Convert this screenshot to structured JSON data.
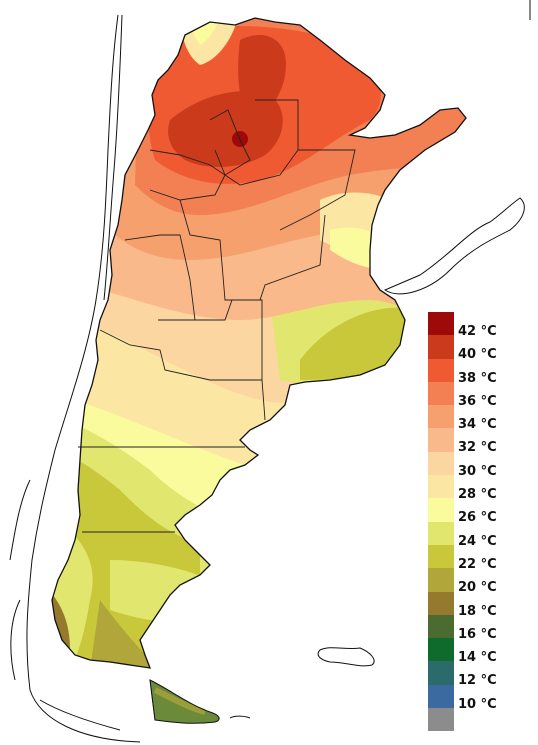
{
  "map": {
    "region": "Argentina",
    "subject": "maximum temperature",
    "hotspot_color": "#a51c0c"
  },
  "legend": {
    "items": [
      {
        "label": "42 °C",
        "color": "#9c0a0a"
      },
      {
        "label": "40 °C",
        "color": "#cc3a1c"
      },
      {
        "label": "38 °C",
        "color": "#f05a32"
      },
      {
        "label": "36 °C",
        "color": "#f28052"
      },
      {
        "label": "34 °C",
        "color": "#f6a06e"
      },
      {
        "label": "32 °C",
        "color": "#f9b98a"
      },
      {
        "label": "30 °C",
        "color": "#fbd6a0"
      },
      {
        "label": "28 °C",
        "color": "#fbe6a3"
      },
      {
        "label": "26 °C",
        "color": "#fafb9c"
      },
      {
        "label": "24 °C",
        "color": "#e1e66f"
      },
      {
        "label": "22 °C",
        "color": "#c8c83a"
      },
      {
        "label": "20 °C",
        "color": "#b1a63a"
      },
      {
        "label": "18 °C",
        "color": "#957a2e"
      },
      {
        "label": "16 °C",
        "color": "#4b6b30"
      },
      {
        "label": "14 °C",
        "color": "#0e6b2c"
      },
      {
        "label": "12 °C",
        "color": "#2c6b6b"
      },
      {
        "label": "10 °C",
        "color": "#3a6aa0"
      },
      {
        "label": "",
        "color": "#8c8c8c"
      }
    ]
  }
}
